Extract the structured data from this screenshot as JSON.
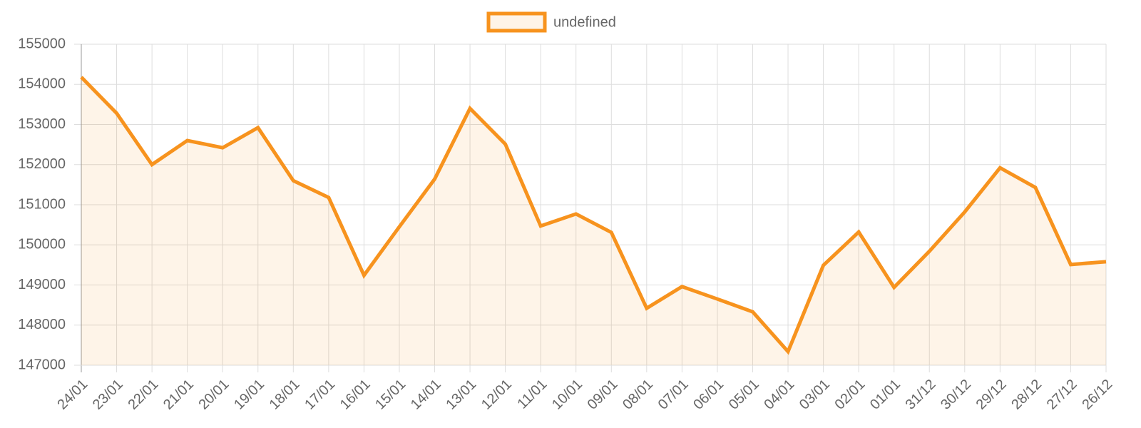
{
  "chart_data": {
    "type": "line",
    "categories": [
      "24/01",
      "23/01",
      "22/01",
      "21/01",
      "20/01",
      "19/01",
      "18/01",
      "17/01",
      "16/01",
      "15/01",
      "14/01",
      "13/01",
      "12/01",
      "11/01",
      "10/01",
      "09/01",
      "08/01",
      "07/01",
      "06/01",
      "05/01",
      "04/01",
      "03/01",
      "02/01",
      "01/01",
      "31/12",
      "30/12",
      "29/12",
      "28/12",
      "27/12",
      "26/12"
    ],
    "series": [
      {
        "name": "undefined",
        "color": "#f7931e",
        "values": [
          154180,
          153280,
          152000,
          152600,
          152420,
          152920,
          151600,
          151180,
          149240,
          150450,
          151640,
          153400,
          152510,
          150470,
          150770,
          150310,
          148420,
          148960,
          148650,
          148330,
          147340,
          149490,
          150320,
          148940,
          149840,
          150820,
          151920,
          151430,
          149510,
          149580
        ]
      }
    ],
    "ylim": [
      147000,
      155000
    ],
    "yticks": [
      147000,
      148000,
      149000,
      150000,
      151000,
      152000,
      153000,
      154000,
      155000
    ],
    "grid": true,
    "fill": true,
    "legend": "top"
  }
}
